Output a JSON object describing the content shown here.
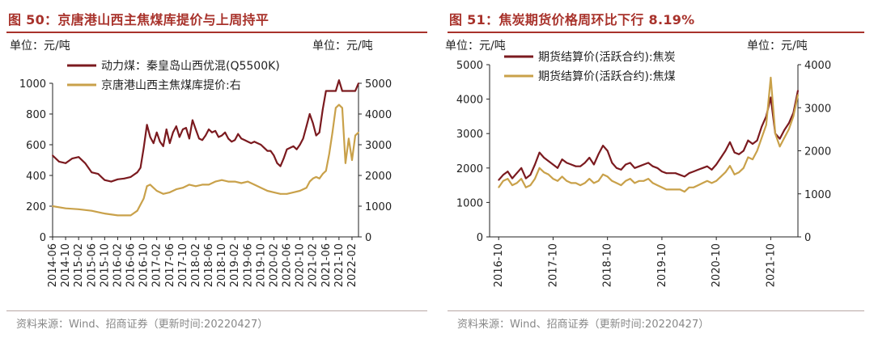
{
  "chart_data": [
    {
      "type": "line",
      "title": "图 50：京唐港山西主焦煤库提价与上周持平",
      "unit_left": "单位：元/吨",
      "unit_right": "单位：元/吨",
      "ylim_left": [
        0,
        1000
      ],
      "yticks_left": [
        "0",
        "200",
        "400",
        "600",
        "800",
        "1000"
      ],
      "ylim_right": [
        0,
        5000
      ],
      "yticks_right": [
        "0",
        "1000",
        "2000",
        "3000",
        "4000",
        "5000"
      ],
      "xlim": [
        "2014-06",
        "2022-04"
      ],
      "x_tick_labels": [
        "2014-06",
        "2014-10",
        "2015-02",
        "2015-06",
        "2015-10",
        "2016-02",
        "2016-06",
        "2016-10",
        "2017-02",
        "2017-06",
        "2017-10",
        "2018-02",
        "2018-06",
        "2018-10",
        "2019-02",
        "2019-06",
        "2019-10",
        "2020-02",
        "2020-06",
        "2020-10",
        "2021-02",
        "2021-06",
        "2021-10",
        "2022-02"
      ],
      "legend_position": "top-left",
      "grid": false,
      "series": [
        {
          "name": "动力煤：秦皇岛山西优混(Q5500K)",
          "axis": "left",
          "color": "#7b1a1f",
          "x": [
            "2014-06",
            "2014-08",
            "2014-10",
            "2014-12",
            "2015-02",
            "2015-04",
            "2015-06",
            "2015-08",
            "2015-10",
            "2015-12",
            "2016-02",
            "2016-04",
            "2016-06",
            "2016-08",
            "2016-09",
            "2016-10",
            "2016-11",
            "2016-12",
            "2017-01",
            "2017-02",
            "2017-03",
            "2017-04",
            "2017-05",
            "2017-06",
            "2017-07",
            "2017-08",
            "2017-09",
            "2017-10",
            "2017-11",
            "2017-12",
            "2018-01",
            "2018-02",
            "2018-03",
            "2018-04",
            "2018-05",
            "2018-06",
            "2018-07",
            "2018-08",
            "2018-09",
            "2018-10",
            "2018-11",
            "2018-12",
            "2019-01",
            "2019-02",
            "2019-03",
            "2019-04",
            "2019-05",
            "2019-06",
            "2019-07",
            "2019-08",
            "2019-09",
            "2019-10",
            "2019-11",
            "2019-12",
            "2020-01",
            "2020-02",
            "2020-03",
            "2020-04",
            "2020-05",
            "2020-06",
            "2020-07",
            "2020-08",
            "2020-09",
            "2020-10",
            "2020-11",
            "2020-12",
            "2021-01",
            "2021-02",
            "2021-03",
            "2021-04",
            "2021-05",
            "2021-06",
            "2021-07",
            "2021-08",
            "2021-09",
            "2021-10",
            "2021-11",
            "2021-12",
            "2022-01",
            "2022-02",
            "2022-03",
            "2022-04"
          ],
          "values": [
            530,
            490,
            480,
            510,
            520,
            480,
            420,
            410,
            370,
            360,
            375,
            380,
            390,
            420,
            450,
            580,
            730,
            650,
            610,
            680,
            620,
            590,
            700,
            610,
            680,
            720,
            650,
            700,
            710,
            640,
            760,
            700,
            640,
            630,
            660,
            700,
            680,
            690,
            650,
            660,
            680,
            640,
            620,
            630,
            670,
            640,
            630,
            620,
            610,
            620,
            610,
            600,
            580,
            560,
            560,
            530,
            480,
            460,
            510,
            570,
            580,
            590,
            570,
            600,
            640,
            720,
            800,
            740,
            660,
            680,
            830,
            950,
            950,
            950,
            950,
            1020,
            950,
            950,
            950,
            950,
            950,
            1000
          ]
        },
        {
          "name": "京唐港山西主焦煤库提价:右",
          "axis": "right",
          "color": "#c9a14a",
          "x": [
            "2014-06",
            "2014-10",
            "2015-02",
            "2015-06",
            "2015-10",
            "2016-02",
            "2016-06",
            "2016-08",
            "2016-10",
            "2016-11",
            "2016-12",
            "2017-02",
            "2017-04",
            "2017-06",
            "2017-08",
            "2017-10",
            "2017-12",
            "2018-02",
            "2018-04",
            "2018-06",
            "2018-08",
            "2018-10",
            "2018-12",
            "2019-02",
            "2019-04",
            "2019-06",
            "2019-08",
            "2019-10",
            "2019-12",
            "2020-02",
            "2020-04",
            "2020-06",
            "2020-08",
            "2020-10",
            "2020-12",
            "2021-01",
            "2021-02",
            "2021-03",
            "2021-04",
            "2021-05",
            "2021-06",
            "2021-07",
            "2021-08",
            "2021-09",
            "2021-10",
            "2021-11",
            "2021-12",
            "2022-01",
            "2022-02",
            "2022-03",
            "2022-04"
          ],
          "values": [
            1000,
            930,
            900,
            850,
            760,
            700,
            700,
            850,
            1250,
            1650,
            1700,
            1500,
            1400,
            1450,
            1550,
            1600,
            1700,
            1650,
            1700,
            1700,
            1800,
            1850,
            1800,
            1800,
            1750,
            1800,
            1700,
            1600,
            1500,
            1450,
            1400,
            1400,
            1450,
            1500,
            1600,
            1800,
            1900,
            1950,
            1900,
            2050,
            2150,
            2700,
            3400,
            4200,
            4300,
            4200,
            2400,
            3200,
            2500,
            3300,
            3400
          ]
        }
      ],
      "source": "资料来源：Wind、招商证券（更新时间:20220427）"
    },
    {
      "type": "line",
      "title": "图 51：焦炭期货价格周环比下行 8.19%",
      "unit_left": "单位：元/吨",
      "unit_right": "单位：元/吨",
      "ylim_left": [
        0,
        5000
      ],
      "yticks_left": [
        "0",
        "1000",
        "2000",
        "3000",
        "4000",
        "5000"
      ],
      "ylim_right": [
        0,
        4000
      ],
      "yticks_right": [
        "0",
        "1000",
        "2000",
        "3000",
        "4000"
      ],
      "xlim": [
        "2016-08",
        "2022-04"
      ],
      "x_tick_labels": [
        "2016-10",
        "2017-10",
        "2018-10",
        "2019-10",
        "2020-10",
        "2021-10"
      ],
      "legend_position": "top-left",
      "grid": false,
      "series": [
        {
          "name": "期货结算价(活跃合约):焦炭",
          "axis": "left",
          "color": "#7b1a1f",
          "x": [
            "2016-10",
            "2016-11",
            "2016-12",
            "2017-01",
            "2017-02",
            "2017-03",
            "2017-04",
            "2017-05",
            "2017-06",
            "2017-07",
            "2017-08",
            "2017-09",
            "2017-10",
            "2017-11",
            "2017-12",
            "2018-01",
            "2018-02",
            "2018-03",
            "2018-04",
            "2018-05",
            "2018-06",
            "2018-07",
            "2018-08",
            "2018-09",
            "2018-10",
            "2018-11",
            "2018-12",
            "2019-01",
            "2019-02",
            "2019-03",
            "2019-04",
            "2019-05",
            "2019-06",
            "2019-07",
            "2019-08",
            "2019-09",
            "2019-10",
            "2019-11",
            "2019-12",
            "2020-01",
            "2020-02",
            "2020-03",
            "2020-04",
            "2020-05",
            "2020-06",
            "2020-07",
            "2020-08",
            "2020-09",
            "2020-10",
            "2020-11",
            "2020-12",
            "2021-01",
            "2021-02",
            "2021-03",
            "2021-04",
            "2021-05",
            "2021-06",
            "2021-07",
            "2021-08",
            "2021-09",
            "2021-10",
            "2021-11",
            "2021-12",
            "2022-01",
            "2022-02",
            "2022-03",
            "2022-04"
          ],
          "values": [
            1650,
            1800,
            1900,
            1700,
            1850,
            2000,
            1700,
            1800,
            2100,
            2450,
            2300,
            2200,
            2100,
            2000,
            2250,
            2150,
            2100,
            2050,
            2050,
            2150,
            2300,
            2100,
            2400,
            2650,
            2500,
            2150,
            2000,
            1950,
            2100,
            2150,
            2000,
            2050,
            2100,
            2150,
            2050,
            2000,
            1900,
            1850,
            1850,
            1850,
            1800,
            1750,
            1850,
            1900,
            1950,
            2000,
            2050,
            1950,
            2100,
            2300,
            2500,
            2750,
            2450,
            2400,
            2500,
            2800,
            2700,
            2800,
            3200,
            3500,
            4050,
            3000,
            2850,
            3100,
            3300,
            3600,
            4250
          ]
        },
        {
          "name": "期货结算价(活跃合约):焦煤",
          "axis": "right",
          "color": "#c9a14a",
          "x": [
            "2016-10",
            "2016-11",
            "2016-12",
            "2017-01",
            "2017-02",
            "2017-03",
            "2017-04",
            "2017-05",
            "2017-06",
            "2017-07",
            "2017-08",
            "2017-09",
            "2017-10",
            "2017-11",
            "2017-12",
            "2018-01",
            "2018-02",
            "2018-03",
            "2018-04",
            "2018-05",
            "2018-06",
            "2018-07",
            "2018-08",
            "2018-09",
            "2018-10",
            "2018-11",
            "2018-12",
            "2019-01",
            "2019-02",
            "2019-03",
            "2019-04",
            "2019-05",
            "2019-06",
            "2019-07",
            "2019-08",
            "2019-09",
            "2019-10",
            "2019-11",
            "2019-12",
            "2020-01",
            "2020-02",
            "2020-03",
            "2020-04",
            "2020-05",
            "2020-06",
            "2020-07",
            "2020-08",
            "2020-09",
            "2020-10",
            "2020-11",
            "2020-12",
            "2021-01",
            "2021-02",
            "2021-03",
            "2021-04",
            "2021-05",
            "2021-06",
            "2021-07",
            "2021-08",
            "2021-09",
            "2021-10",
            "2021-11",
            "2021-12",
            "2022-01",
            "2022-02",
            "2022-03",
            "2022-04"
          ],
          "values": [
            1150,
            1300,
            1350,
            1200,
            1250,
            1350,
            1150,
            1200,
            1350,
            1600,
            1500,
            1450,
            1350,
            1300,
            1400,
            1300,
            1250,
            1250,
            1200,
            1250,
            1350,
            1250,
            1300,
            1450,
            1400,
            1300,
            1250,
            1200,
            1300,
            1350,
            1250,
            1300,
            1300,
            1350,
            1250,
            1200,
            1150,
            1100,
            1100,
            1100,
            1100,
            1050,
            1150,
            1150,
            1200,
            1250,
            1300,
            1250,
            1300,
            1400,
            1500,
            1650,
            1450,
            1500,
            1600,
            1850,
            1800,
            2000,
            2300,
            2600,
            3700,
            2400,
            2100,
            2300,
            2500,
            2800,
            3300
          ]
        }
      ],
      "source": "资料来源：Wind、招商证券（更新时间:20220427）"
    }
  ]
}
